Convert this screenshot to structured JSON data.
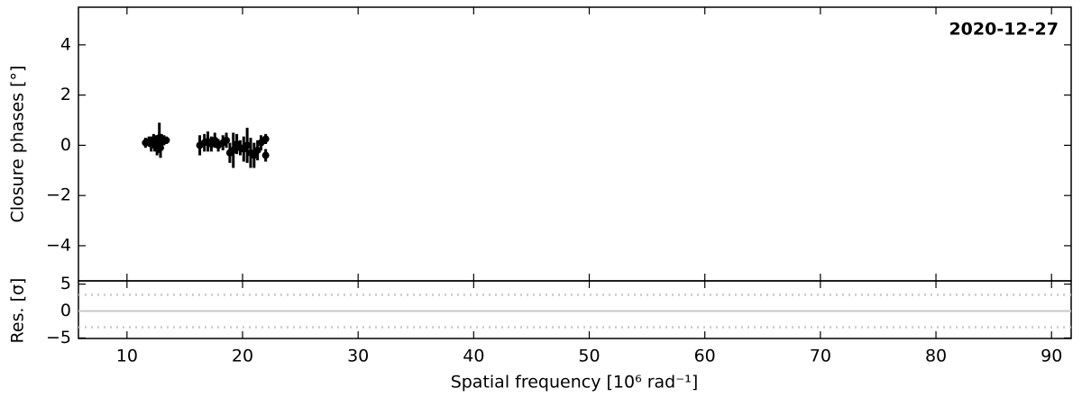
{
  "chart_data": [
    {
      "type": "errorbar",
      "annotation": "2020-12-27",
      "ylabel": "Closure phases [°]",
      "color": "#000000",
      "x": [
        11.6,
        11.9,
        12.1,
        12.3,
        12.4,
        12.5,
        12.6,
        12.8,
        12.9,
        13.0,
        13.2,
        13.4,
        16.3,
        16.7,
        17.0,
        17.3,
        17.6,
        17.9,
        18.3,
        18.6,
        18.9,
        19.2,
        19.5,
        19.8,
        20.1,
        20.4,
        20.7,
        21.0,
        21.3,
        21.6,
        22.0,
        22.0
      ],
      "values": [
        0.1,
        0.15,
        0.05,
        0.2,
        0.0,
        0.1,
        -0.05,
        0.3,
        -0.1,
        0.15,
        0.2,
        0.2,
        0.0,
        0.1,
        0.15,
        0.05,
        0.2,
        0.0,
        0.1,
        0.2,
        -0.3,
        -0.2,
        0.05,
        -0.1,
        -0.15,
        0.0,
        -0.3,
        -0.4,
        -0.2,
        0.1,
        0.25,
        -0.4
      ],
      "errors": [
        0.2,
        0.2,
        0.3,
        0.25,
        0.25,
        0.3,
        0.35,
        0.6,
        0.4,
        0.3,
        0.2,
        0.15,
        0.4,
        0.35,
        0.4,
        0.3,
        0.3,
        0.25,
        0.3,
        0.3,
        0.4,
        0.7,
        0.4,
        0.3,
        0.5,
        0.7,
        0.6,
        0.5,
        0.4,
        0.3,
        0.2,
        0.25
      ],
      "xlim": [
        5.8,
        91.7
      ],
      "ylim": [
        -5.4,
        5.5
      ],
      "yticks": [
        {
          "value": -4,
          "label": "−4"
        },
        {
          "value": -2,
          "label": "−2"
        },
        0,
        2,
        4
      ]
    },
    {
      "type": "residual",
      "ylabel": "Res. [σ]",
      "xlabel": "Spatial frequency [10⁶ rad⁻¹]",
      "hlines": [
        0
      ],
      "dotted_hlines": [
        -3,
        3
      ],
      "line_color": "#c8c8c8",
      "xlim": [
        5.8,
        91.7
      ],
      "ylim": [
        -5.1,
        5.6
      ],
      "xticks": [
        10,
        20,
        30,
        40,
        50,
        60,
        70,
        80,
        90
      ],
      "yticks": [
        {
          "value": -5,
          "label": "−5"
        },
        0,
        5
      ]
    }
  ]
}
